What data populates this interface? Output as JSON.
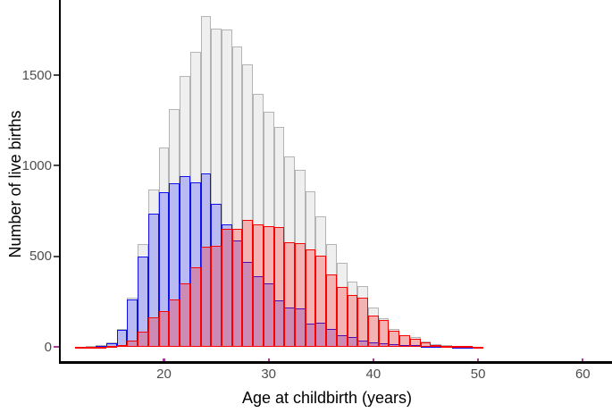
{
  "chart_data": {
    "type": "histogram",
    "title": "",
    "xlabel": "Age at childbirth (years)",
    "ylabel": "Number of live births",
    "x_ticks": [
      20,
      30,
      40,
      50,
      60
    ],
    "y_ticks": [
      0,
      500,
      1000,
      1500
    ],
    "xlim": [
      10.1,
      62.8
    ],
    "ylim": [
      0,
      1915
    ],
    "grid": "off",
    "legend": "none",
    "binwidth": 1,
    "bin_centers": [
      12,
      13,
      14,
      15,
      16,
      17,
      18,
      19,
      20,
      21,
      22,
      23,
      24,
      25,
      26,
      27,
      28,
      29,
      30,
      31,
      32,
      33,
      34,
      35,
      36,
      37,
      38,
      39,
      40,
      41,
      42,
      43,
      44,
      45,
      46,
      47,
      48,
      49,
      50
    ],
    "series": [
      {
        "name": "grey-histogram",
        "outline_color": "#b4b4b4",
        "fill_color": "rgba(238,238,238,0.92)",
        "values": [
          2,
          3,
          8,
          25,
          100,
          270,
          565,
          870,
          1100,
          1314,
          1495,
          1627,
          1824,
          1758,
          1753,
          1659,
          1561,
          1396,
          1297,
          1215,
          1050,
          977,
          857,
          722,
          569,
          464,
          360,
          338,
          218,
          158,
          97,
          64,
          55,
          28,
          14,
          8,
          5,
          3,
          2
        ]
      },
      {
        "name": "blue-histogram",
        "outline_color": "#1010ee",
        "fill_color": "rgba(0,0,255,0.22)",
        "values": [
          1,
          2,
          6,
          22,
          95,
          260,
          500,
          735,
          855,
          905,
          943,
          910,
          955,
          788,
          675,
          588,
          467,
          390,
          348,
          257,
          219,
          213,
          127,
          133,
          100,
          64,
          53,
          35,
          25,
          20,
          15,
          10,
          8,
          5,
          4,
          3,
          2,
          2,
          1
        ]
      },
      {
        "name": "red-histogram",
        "outline_color": "#fa0000",
        "fill_color": "rgba(255,0,0,0.25)",
        "values": [
          1,
          1,
          2,
          4,
          10,
          36,
          85,
          161,
          197,
          260,
          352,
          440,
          552,
          556,
          652,
          650,
          703,
          674,
          668,
          660,
          579,
          574,
          538,
          505,
          399,
          333,
          284,
          273,
          175,
          148,
          90,
          62,
          45,
          25,
          12,
          6,
          4,
          3,
          1
        ]
      }
    ],
    "styles": {
      "axis_line_color": "#000000",
      "x_tick_color": "#a93aa0",
      "y_tick_color": "#4a4a4a",
      "zero_tick_color": "#a93aa0",
      "tick_label_color": "#4d4d4d",
      "axis_title_color": "#000000"
    }
  }
}
